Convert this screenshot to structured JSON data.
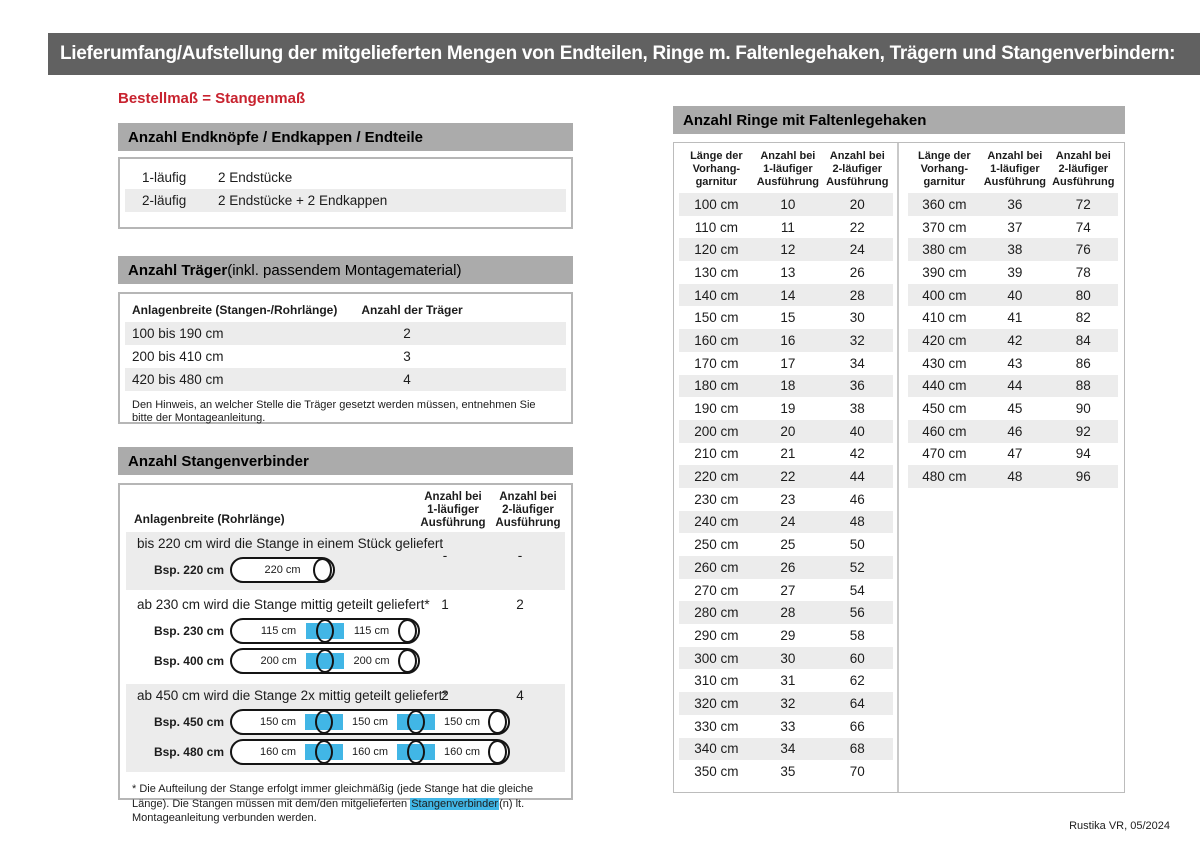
{
  "page": {
    "title": "Lieferumfang/Aufstellung der mitgelieferten Mengen von Endteilen, Ringe m. Faltenlegehaken, Trägern und Stangenverbindern:",
    "subtitle": "Bestellmaß = Stangenmaß",
    "footer": "Rustika VR, 05/2024"
  },
  "colors": {
    "header_bar": "#616161",
    "section_bar": "#ababab",
    "row_shade": "#ececec",
    "accent_red": "#c8232f",
    "connector_blue": "#41b6e6"
  },
  "endteile": {
    "title": "Anzahl Endknöpfe / Endkappen / Endteile",
    "rows": [
      {
        "label": "1-läufig",
        "value": "2 Endstücke"
      },
      {
        "label": "2-läufig",
        "value": "2 Endstücke + 2 Endkappen"
      }
    ]
  },
  "traeger": {
    "title_bold": "Anzahl Träger",
    "title_rest": " (inkl. passendem Montagematerial)",
    "col_width": "Anlagenbreite (Stangen-/Rohrlänge)",
    "col_count": "Anzahl der Träger",
    "rows": [
      {
        "range": "100 bis 190 cm",
        "count": "2"
      },
      {
        "range": "200 bis 410 cm",
        "count": "3"
      },
      {
        "range": "420 bis 480 cm",
        "count": "4"
      }
    ],
    "note": "Den Hinweis, an welcher Stelle die Träger gesetzt werden müssen, entnehmen Sie bitte der Montageanleitung."
  },
  "verbinder": {
    "title": "Anzahl Stangenverbinder",
    "col_width": "Anlagenbreite (Rohrlänge)",
    "col_1l": [
      "Anzahl bei",
      "1-läufiger",
      "Ausführung"
    ],
    "col_2l": [
      "Anzahl bei",
      "2-läufiger",
      "Ausführung"
    ],
    "groups": [
      {
        "desc": "bis 220 cm wird die Stange in einem Stück geliefert",
        "count_1l": "-",
        "count_2l": "-",
        "rods": [
          {
            "label": "Bsp. 220 cm",
            "segments": [
              "220 cm"
            ]
          }
        ]
      },
      {
        "desc": "ab 230 cm wird die Stange mittig geteilt geliefert*",
        "count_1l": "1",
        "count_2l": "2",
        "rods": [
          {
            "label": "Bsp. 230 cm",
            "segments": [
              "115 cm",
              "115 cm"
            ]
          },
          {
            "label": "Bsp. 400 cm",
            "segments": [
              "200 cm",
              "200 cm"
            ]
          }
        ]
      },
      {
        "desc": "ab 450 cm wird die Stange 2x mittig geteilt geliefert*",
        "count_1l": "2",
        "count_2l": "4",
        "rods": [
          {
            "label": "Bsp. 450 cm",
            "segments": [
              "150 cm",
              "150 cm",
              "150 cm"
            ]
          },
          {
            "label": "Bsp. 480 cm",
            "segments": [
              "160 cm",
              "160 cm",
              "160 cm"
            ]
          }
        ]
      }
    ],
    "footnote": {
      "before": "* Die Aufteilung der Stange erfolgt immer gleichmäßig (jede Stange hat die gleiche Länge). Die Stangen müssen mit dem/den mitgelieferten ",
      "highlight": "Stangenverbinder",
      "after": "(n) lt. Montageanleitung verbunden werden."
    }
  },
  "ringe": {
    "title": "Anzahl Ringe mit Faltenlegehaken",
    "headers": {
      "length": [
        "Länge der",
        "Vorhang-",
        "garnitur"
      ],
      "one": [
        "Anzahl bei",
        "1-läufiger",
        "Ausführung"
      ],
      "two": [
        "Anzahl bei",
        "2-läufiger",
        "Ausführung"
      ]
    },
    "left_rows": [
      [
        "100 cm",
        "10",
        "20"
      ],
      [
        "110 cm",
        "11",
        "22"
      ],
      [
        "120 cm",
        "12",
        "24"
      ],
      [
        "130 cm",
        "13",
        "26"
      ],
      [
        "140 cm",
        "14",
        "28"
      ],
      [
        "150 cm",
        "15",
        "30"
      ],
      [
        "160 cm",
        "16",
        "32"
      ],
      [
        "170 cm",
        "17",
        "34"
      ],
      [
        "180 cm",
        "18",
        "36"
      ],
      [
        "190 cm",
        "19",
        "38"
      ],
      [
        "200 cm",
        "20",
        "40"
      ],
      [
        "210 cm",
        "21",
        "42"
      ],
      [
        "220 cm",
        "22",
        "44"
      ],
      [
        "230 cm",
        "23",
        "46"
      ],
      [
        "240 cm",
        "24",
        "48"
      ],
      [
        "250 cm",
        "25",
        "50"
      ],
      [
        "260 cm",
        "26",
        "52"
      ],
      [
        "270 cm",
        "27",
        "54"
      ],
      [
        "280 cm",
        "28",
        "56"
      ],
      [
        "290 cm",
        "29",
        "58"
      ],
      [
        "300 cm",
        "30",
        "60"
      ],
      [
        "310 cm",
        "31",
        "62"
      ],
      [
        "320 cm",
        "32",
        "64"
      ],
      [
        "330 cm",
        "33",
        "66"
      ],
      [
        "340 cm",
        "34",
        "68"
      ],
      [
        "350 cm",
        "35",
        "70"
      ]
    ],
    "right_rows": [
      [
        "360 cm",
        "36",
        "72"
      ],
      [
        "370 cm",
        "37",
        "74"
      ],
      [
        "380 cm",
        "38",
        "76"
      ],
      [
        "390 cm",
        "39",
        "78"
      ],
      [
        "400 cm",
        "40",
        "80"
      ],
      [
        "410 cm",
        "41",
        "82"
      ],
      [
        "420 cm",
        "42",
        "84"
      ],
      [
        "430 cm",
        "43",
        "86"
      ],
      [
        "440 cm",
        "44",
        "88"
      ],
      [
        "450 cm",
        "45",
        "90"
      ],
      [
        "460 cm",
        "46",
        "92"
      ],
      [
        "470 cm",
        "47",
        "94"
      ],
      [
        "480 cm",
        "48",
        "96"
      ]
    ]
  }
}
